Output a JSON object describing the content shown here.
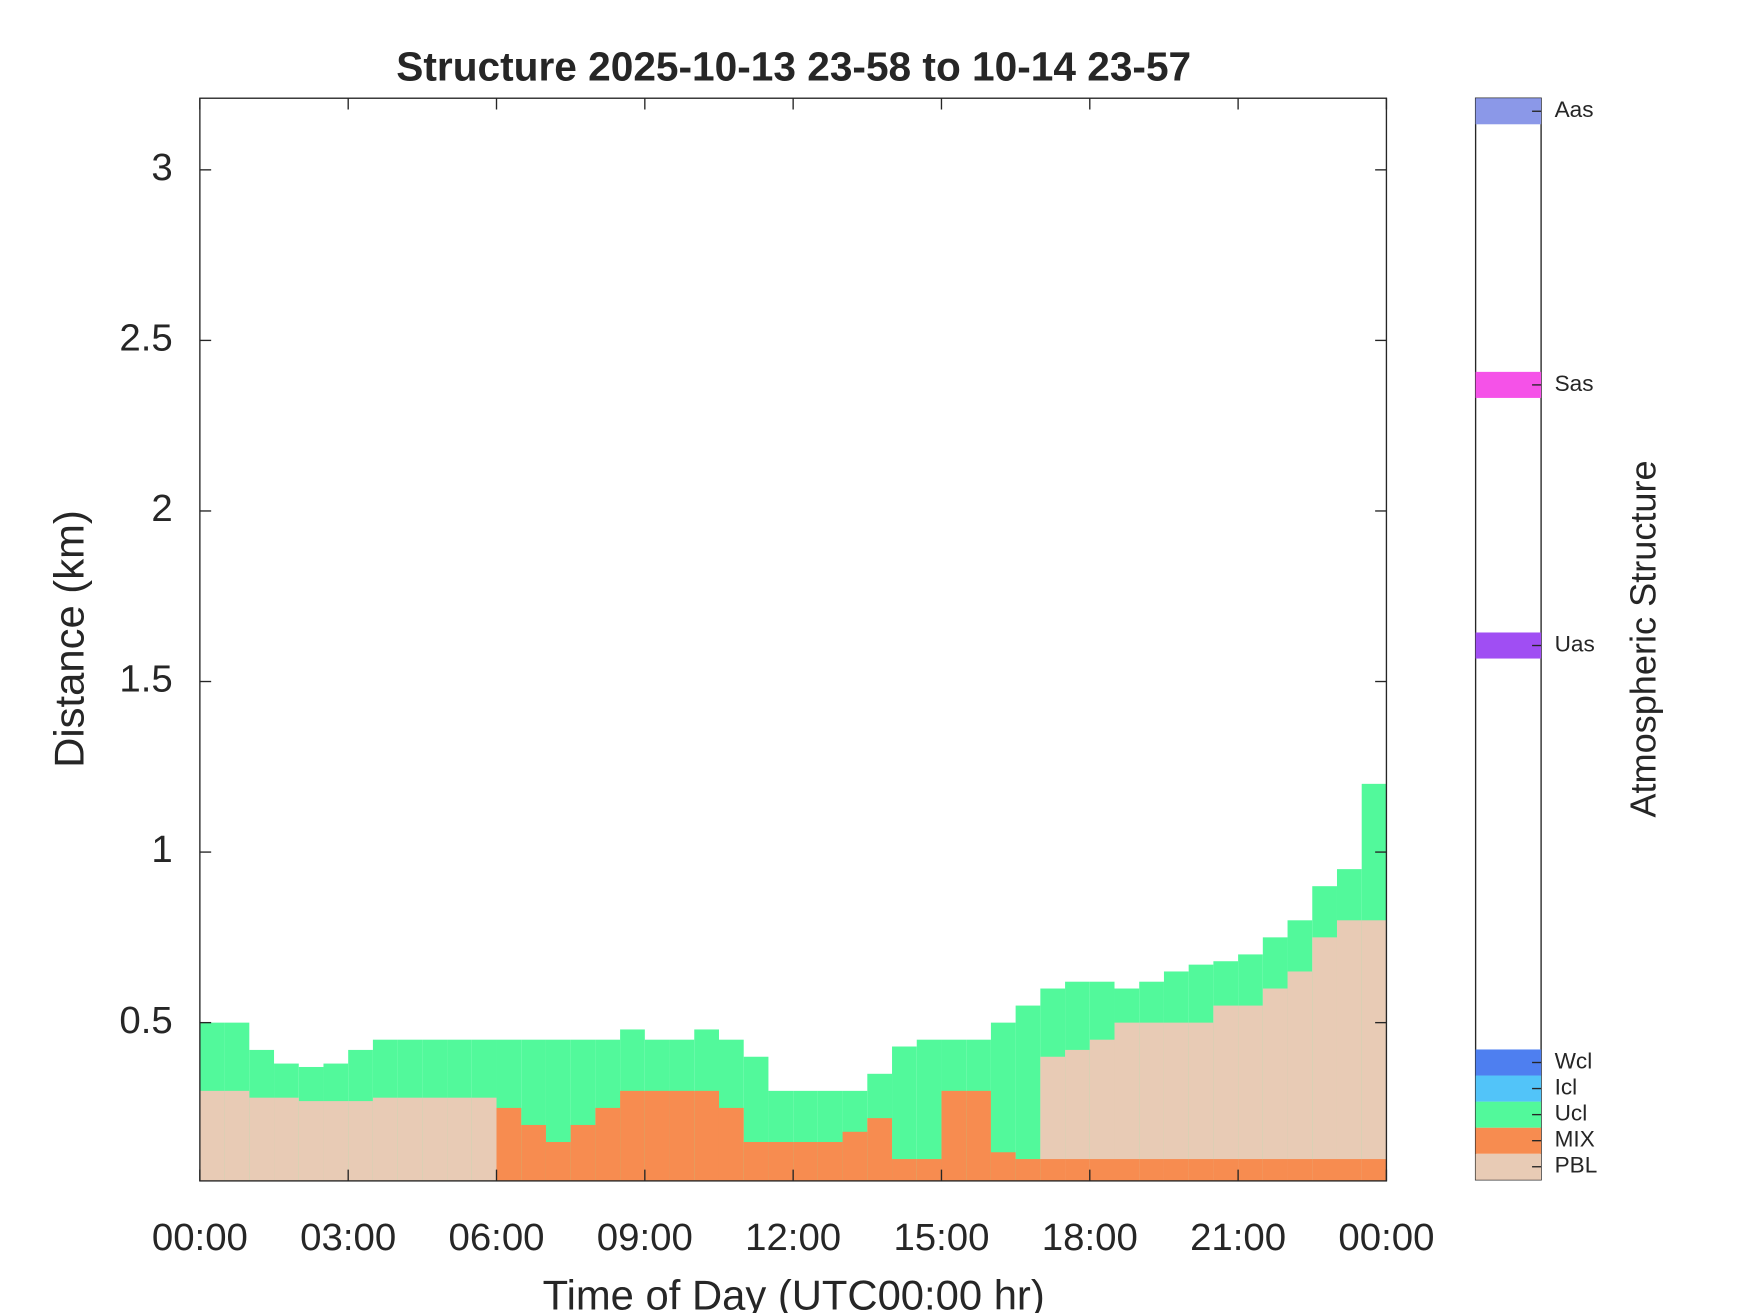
{
  "chart_data": {
    "type": "layers",
    "title": "Structure 2025-10-13 23-58 to 10-14 23-57",
    "x_label": "Time of Day (UTC00:00 hr)",
    "y_label": "Distance (km)",
    "x": [
      0,
      0.5,
      1,
      1.5,
      2,
      2.5,
      3,
      3.5,
      4,
      4.5,
      5,
      5.5,
      6,
      6.5,
      7,
      7.5,
      8,
      8.5,
      9,
      9.5,
      10,
      10.5,
      11,
      11.5,
      12,
      12.5,
      13,
      13.5,
      14,
      14.5,
      15,
      15.5,
      16,
      16.5,
      17,
      17.5,
      18,
      18.5,
      19,
      19.5,
      20,
      20.5,
      21,
      21.5,
      22,
      22.5,
      23,
      23.5
    ],
    "bin_width": 0.5,
    "xlim": [
      0,
      24
    ],
    "xticks": [
      {
        "value": 0,
        "label": "00:00"
      },
      {
        "value": 3,
        "label": "03:00"
      },
      {
        "value": 6,
        "label": "06:00"
      },
      {
        "value": 9,
        "label": "09:00"
      },
      {
        "value": 12,
        "label": "12:00"
      },
      {
        "value": 15,
        "label": "15:00"
      },
      {
        "value": 18,
        "label": "18:00"
      },
      {
        "value": 21,
        "label": "21:00"
      },
      {
        "value": 24,
        "label": "00:00"
      }
    ],
    "ylim": [
      0.036,
      3.21
    ],
    "yticks": [
      0.5,
      1,
      1.5,
      2,
      2.5,
      3
    ],
    "series": [
      {
        "name": "Ucl",
        "color": "#52f99b",
        "values": [
          0.5,
          0.5,
          0.42,
          0.38,
          0.37,
          0.38,
          0.42,
          0.45,
          0.45,
          0.45,
          0.45,
          0.45,
          0.45,
          0.45,
          0.45,
          0.45,
          0.45,
          0.48,
          0.45,
          0.45,
          0.48,
          0.45,
          0.4,
          0.3,
          0.3,
          0.3,
          0.3,
          0.35,
          0.43,
          0.45,
          0.45,
          0.45,
          0.5,
          0.55,
          0.6,
          0.62,
          0.62,
          0.6,
          0.62,
          0.65,
          0.67,
          0.68,
          0.7,
          0.75,
          0.8,
          0.9,
          0.95,
          1.2
        ]
      },
      {
        "name": "PBL",
        "color": "#e8cbb5",
        "values": [
          0.3,
          0.3,
          0.28,
          0.28,
          0.27,
          0.27,
          0.27,
          0.28,
          0.28,
          0.28,
          0.28,
          0.28,
          null,
          null,
          null,
          null,
          null,
          null,
          null,
          null,
          null,
          null,
          null,
          null,
          null,
          null,
          null,
          null,
          null,
          null,
          null,
          null,
          null,
          null,
          0.4,
          0.42,
          0.45,
          0.5,
          0.5,
          0.5,
          0.5,
          0.55,
          0.55,
          0.6,
          0.65,
          0.75,
          0.8,
          0.8
        ]
      },
      {
        "name": "MIX",
        "color": "#f78c50",
        "values": [
          null,
          null,
          null,
          null,
          null,
          null,
          null,
          null,
          null,
          null,
          null,
          null,
          0.25,
          0.2,
          0.15,
          0.2,
          0.25,
          0.3,
          0.3,
          0.3,
          0.3,
          0.25,
          0.15,
          0.15,
          0.15,
          0.15,
          0.18,
          0.22,
          0.1,
          0.1,
          0.3,
          0.3,
          0.12,
          0.1,
          0.1,
          0.1,
          0.1,
          0.1,
          0.1,
          0.1,
          0.1,
          0.1,
          0.1,
          0.1,
          0.1,
          0.1,
          0.1,
          0.1
        ]
      }
    ],
    "colorbar": {
      "label": "Atmospheric Structure",
      "lim": [
        0.5,
        42
      ],
      "ticks": [
        {
          "value": 1,
          "label": "PBL",
          "color": "#e8cbb5"
        },
        {
          "value": 2,
          "label": "MIX",
          "color": "#f78c50"
        },
        {
          "value": 3,
          "label": "Ucl",
          "color": "#52f99b"
        },
        {
          "value": 4,
          "label": "Icl",
          "color": "#52c4f9"
        },
        {
          "value": 5,
          "label": "Wcl",
          "color": "#4e7ff0"
        },
        {
          "value": 21,
          "label": "Uas",
          "color": "#a04ef3"
        },
        {
          "value": 31,
          "label": "Sas",
          "color": "#f552e8"
        },
        {
          "value": 41.5,
          "label": "Aas",
          "color": "#8b98e8"
        }
      ]
    }
  }
}
